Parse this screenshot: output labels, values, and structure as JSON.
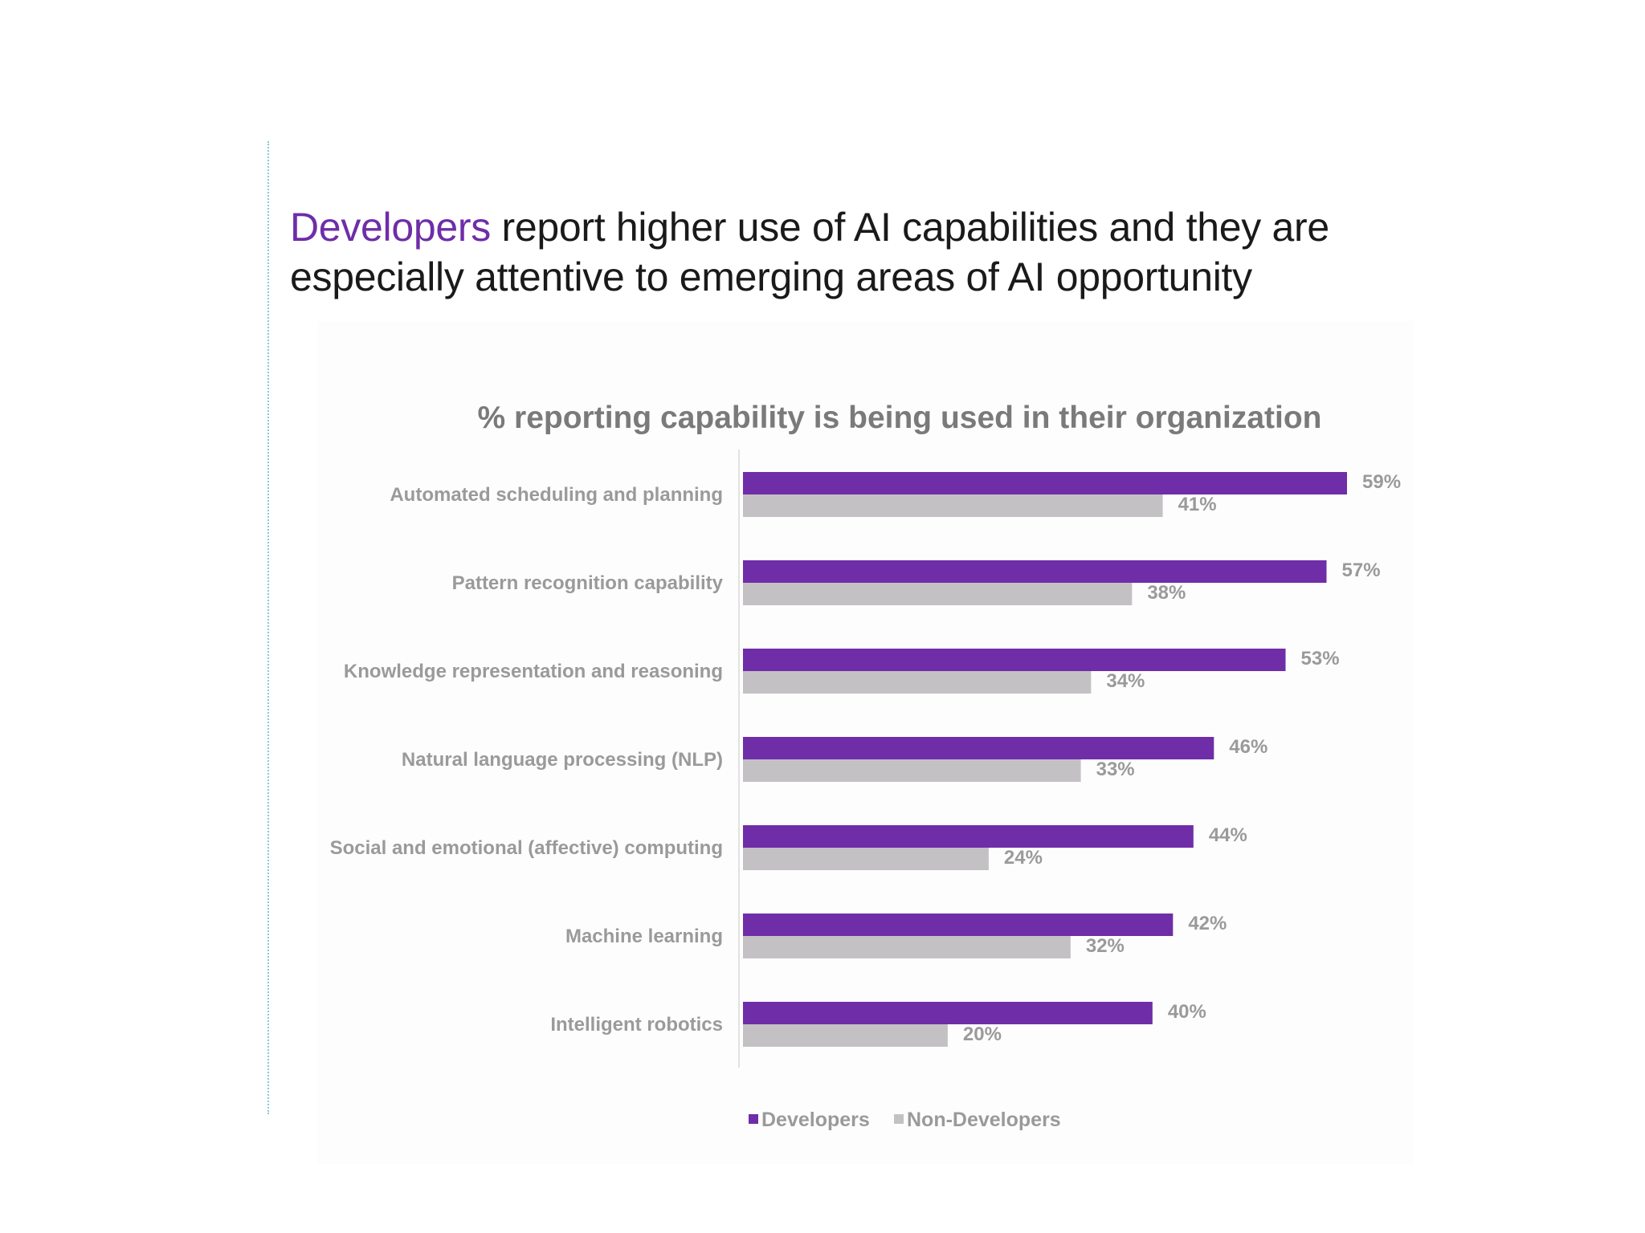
{
  "headline": {
    "accent": "Developers",
    "rest": " report higher use of AI capabilities and they are especially attentive to emerging areas of AI opportunity"
  },
  "colors": {
    "accent": "#6f2da8",
    "developers": "#6f2da8",
    "non_developers": "#c4c1c4",
    "text_gray": "#9a9a9a"
  },
  "chart_data": {
    "type": "bar",
    "orientation": "horizontal",
    "title": "% reporting capability is being used in their organization",
    "categories": [
      "Automated scheduling and planning",
      "Pattern recognition capability",
      "Knowledge representation and reasoning",
      "Natural language processing (NLP)",
      "Social and emotional (affective) computing",
      "Machine learning",
      "Intelligent robotics"
    ],
    "series": [
      {
        "name": "Developers",
        "values": [
          59,
          57,
          53,
          46,
          44,
          42,
          40
        ],
        "labels": [
          "59%",
          "57%",
          "53%",
          "46%",
          "44%",
          "42%",
          "40%"
        ]
      },
      {
        "name": "Non-Developers",
        "values": [
          41,
          38,
          34,
          33,
          24,
          32,
          20
        ],
        "labels": [
          "41%",
          "38%",
          "34%",
          "33%",
          "24%",
          "32%",
          "20%"
        ]
      }
    ],
    "xlim": [
      0,
      59
    ],
    "grid": false,
    "legend": "bottom-center"
  }
}
